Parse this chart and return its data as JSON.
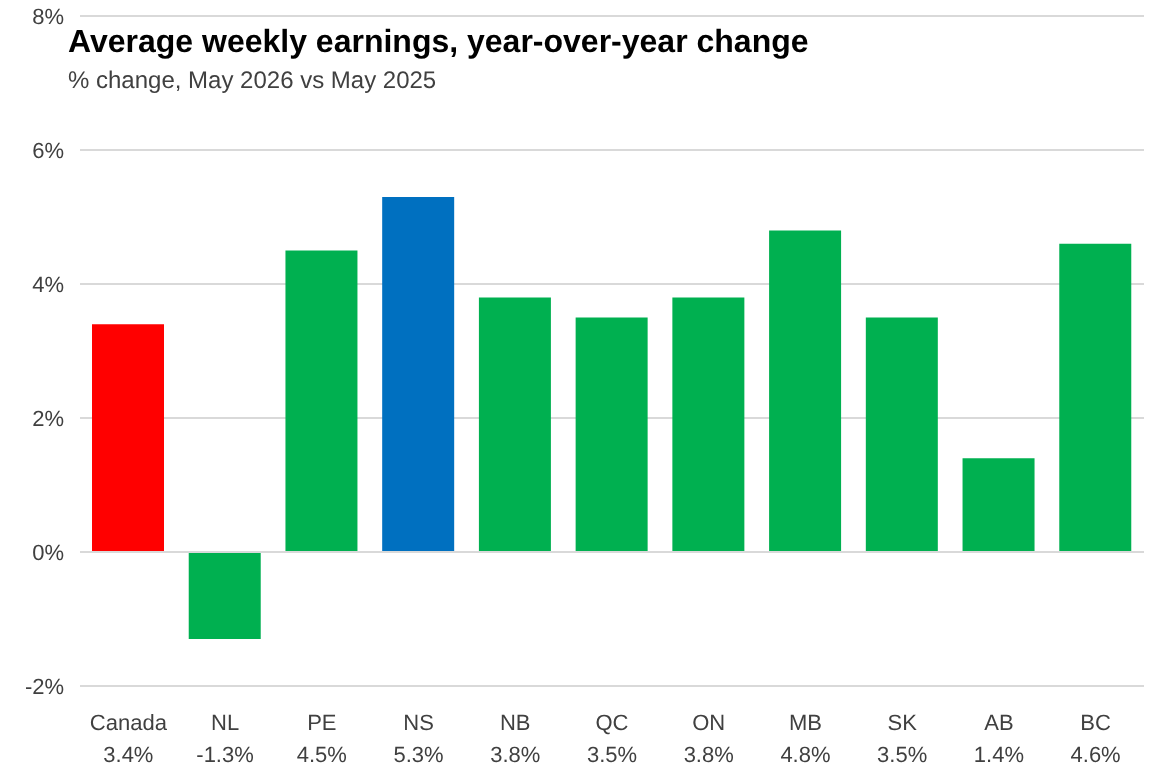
{
  "chart_data": {
    "type": "bar",
    "title": "Average weekly earnings, year-over-year change",
    "subtitle": "% change, May 2026 vs May 2025",
    "categories": [
      "Canada",
      "NL",
      "PE",
      "NS",
      "NB",
      "QC",
      "ON",
      "MB",
      "SK",
      "AB",
      "BC"
    ],
    "values": [
      3.4,
      -1.3,
      4.5,
      5.3,
      3.8,
      3.5,
      3.8,
      4.8,
      3.5,
      1.4,
      4.6
    ],
    "colors": [
      "#ff0000",
      "#00b050",
      "#00b050",
      "#0070c0",
      "#00b050",
      "#00b050",
      "#00b050",
      "#00b050",
      "#00b050",
      "#00b050",
      "#00b050"
    ],
    "value_labels": [
      "3.4%",
      "-1.3%",
      "4.5%",
      "5.3%",
      "3.8%",
      "3.5%",
      "3.8%",
      "4.8%",
      "3.5%",
      "1.4%",
      "4.6%"
    ],
    "ylim": [
      -2,
      8
    ],
    "yticks": [
      {
        "value": -2,
        "label": "-2%"
      },
      {
        "value": 0,
        "label": "0%"
      },
      {
        "value": 2,
        "label": "2%"
      },
      {
        "value": 4,
        "label": "4%"
      },
      {
        "value": 6,
        "label": "6%"
      },
      {
        "value": 8,
        "label": "8%"
      }
    ],
    "grid": "y"
  }
}
